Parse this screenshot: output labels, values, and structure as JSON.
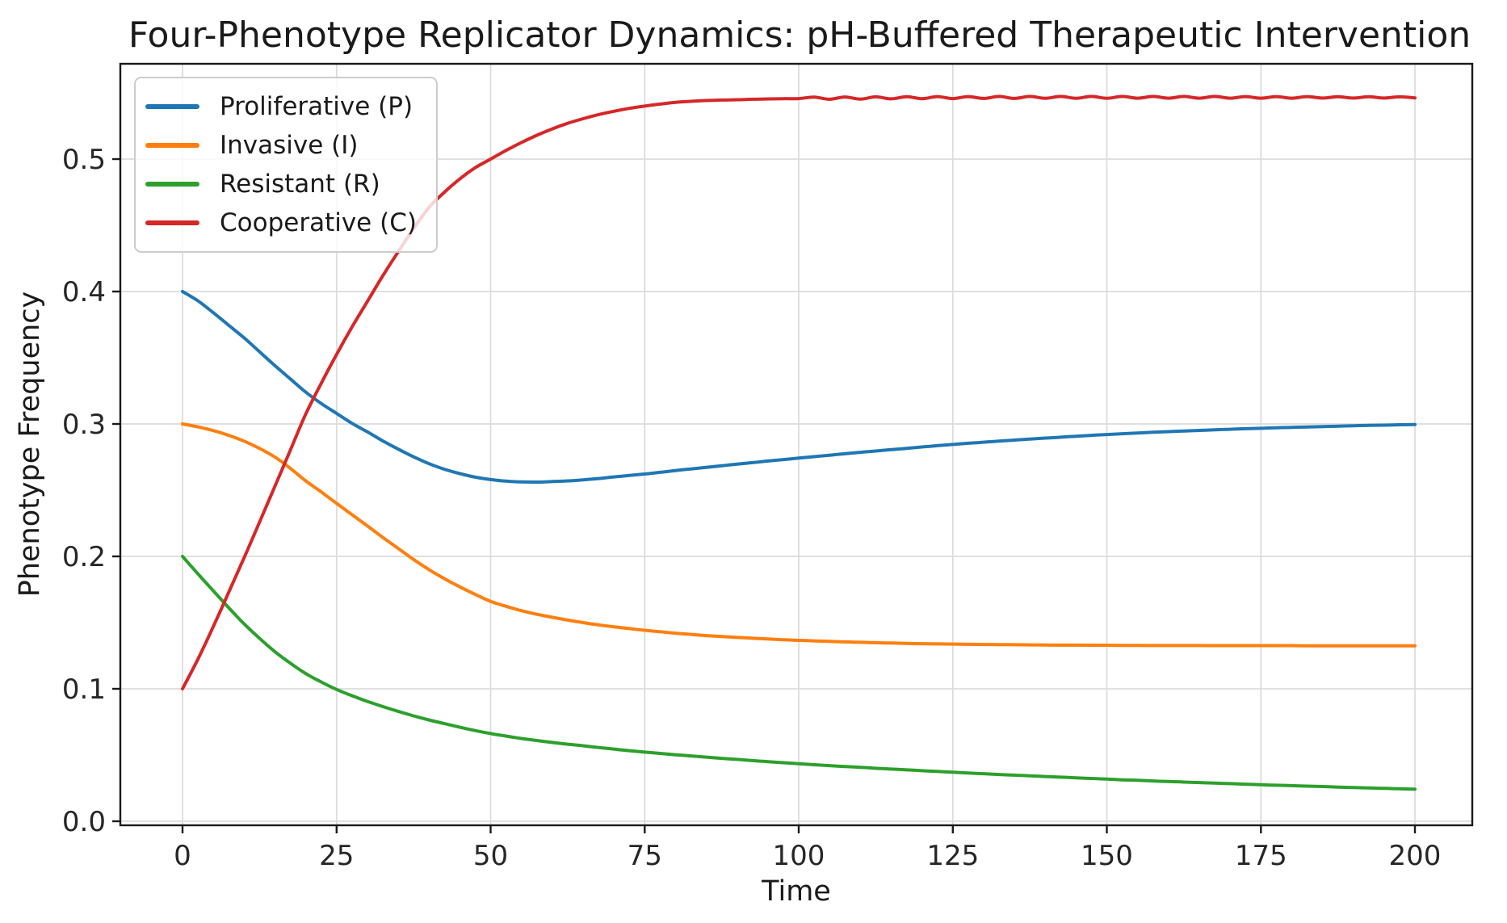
{
  "figure": {
    "background": "#ffffff"
  },
  "chart_data": {
    "type": "line",
    "title": "Four-Phenotype Replicator Dynamics: pH-Buffered Therapeutic Intervention",
    "xlabel": "Time",
    "ylabel": "Phenotype Frequency",
    "xlim": [
      -10,
      210
    ],
    "ylim": [
      -0.003,
      0.573
    ],
    "grid": true,
    "grid_color": "#dcdcdc",
    "axis_color": "#1a1a1a",
    "legend_position": "upper left",
    "xtick_values": [
      0,
      25,
      50,
      75,
      100,
      125,
      150,
      175,
      200
    ],
    "xtick_labels": [
      "0",
      "25",
      "50",
      "75",
      "100",
      "125",
      "150",
      "175",
      "200"
    ],
    "ytick_values": [
      0.0,
      0.1,
      0.2,
      0.3,
      0.4,
      0.5
    ],
    "ytick_labels": [
      "0.0",
      "0.1",
      "0.2",
      "0.3",
      "0.4",
      "0.5"
    ],
    "x": [
      0,
      2.5,
      5,
      7.5,
      10,
      12.5,
      15,
      17.5,
      20,
      22.5,
      25,
      27.5,
      30,
      32.5,
      35,
      37.5,
      40,
      42.5,
      45,
      47.5,
      50,
      52.5,
      55,
      57.5,
      60,
      62.5,
      65,
      67.5,
      70,
      72.5,
      75,
      77.5,
      80,
      82.5,
      85,
      87.5,
      90,
      92.5,
      95,
      97.5,
      100,
      102.5,
      105,
      107.5,
      110,
      112.5,
      115,
      117.5,
      120,
      122.5,
      125,
      127.5,
      130,
      132.5,
      135,
      137.5,
      140,
      142.5,
      145,
      147.5,
      150,
      152.5,
      155,
      157.5,
      160,
      162.5,
      165,
      167.5,
      170,
      172.5,
      175,
      177.5,
      180,
      182.5,
      185,
      187.5,
      190,
      192.5,
      195,
      197.5,
      200
    ],
    "series": [
      {
        "name": "Proliferative (P)",
        "color": "#1f77b4",
        "values": [
          0.4,
          0.393,
          0.384,
          0.3745,
          0.365,
          0.3545,
          0.344,
          0.334,
          0.324,
          0.3155,
          0.308,
          0.3005,
          0.294,
          0.2872,
          0.281,
          0.2752,
          0.27,
          0.2658,
          0.2625,
          0.2598,
          0.258,
          0.2568,
          0.2562,
          0.2561,
          0.2565,
          0.257,
          0.2578,
          0.2588,
          0.26,
          0.2611,
          0.2622,
          0.2635,
          0.2648,
          0.266,
          0.2672,
          0.2684,
          0.2697,
          0.2708,
          0.272,
          0.2731,
          0.2742,
          0.2753,
          0.2764,
          0.2775,
          0.2786,
          0.2796,
          0.2806,
          0.2816,
          0.2826,
          0.2836,
          0.2845,
          0.2854,
          0.2862,
          0.287,
          0.2878,
          0.2886,
          0.2893,
          0.29,
          0.2907,
          0.2914,
          0.292,
          0.2926,
          0.2931,
          0.2937,
          0.2942,
          0.2947,
          0.2951,
          0.2956,
          0.296,
          0.2964,
          0.2967,
          0.2971,
          0.2974,
          0.2977,
          0.298,
          0.2983,
          0.2986,
          0.2989,
          0.2991,
          0.2994,
          0.2996
        ]
      },
      {
        "name": "Invasive (I)",
        "color": "#ff7f0e",
        "values": [
          0.3,
          0.2978,
          0.295,
          0.2914,
          0.287,
          0.2815,
          0.275,
          0.2665,
          0.257,
          0.2487,
          0.24,
          0.2315,
          0.223,
          0.2143,
          0.206,
          0.1977,
          0.19,
          0.1832,
          0.177,
          0.1713,
          0.166,
          0.1623,
          0.159,
          0.1563,
          0.154,
          0.1519,
          0.15,
          0.1483,
          0.1468,
          0.1455,
          0.1442,
          0.1431,
          0.142,
          0.1411,
          0.1402,
          0.1395,
          0.1388,
          0.1382,
          0.1376,
          0.1371,
          0.1366,
          0.1362,
          0.1358,
          0.1354,
          0.1351,
          0.1348,
          0.1346,
          0.1343,
          0.1341,
          0.1339,
          0.1338,
          0.1336,
          0.1335,
          0.1334,
          0.1333,
          0.1332,
          0.1331,
          0.133,
          0.133,
          0.1329,
          0.1329,
          0.1328,
          0.1328,
          0.1327,
          0.1327,
          0.1327,
          0.1327,
          0.1326,
          0.1326,
          0.1326,
          0.1326,
          0.1326,
          0.1326,
          0.1325,
          0.1325,
          0.1325,
          0.1325,
          0.1325,
          0.1325,
          0.1325,
          0.1325
        ]
      },
      {
        "name": "Resistant (R)",
        "color": "#2ca02c",
        "values": [
          0.2,
          0.1868,
          0.174,
          0.1612,
          0.149,
          0.1381,
          0.128,
          0.1193,
          0.1115,
          0.1052,
          0.0995,
          0.0948,
          0.0905,
          0.0866,
          0.083,
          0.0796,
          0.0765,
          0.0737,
          0.071,
          0.0685,
          0.0662,
          0.0643,
          0.0625,
          0.061,
          0.0595,
          0.0582,
          0.057,
          0.0557,
          0.0545,
          0.0533,
          0.0522,
          0.0512,
          0.0502,
          0.0493,
          0.0484,
          0.0475,
          0.0467,
          0.0458,
          0.045,
          0.0442,
          0.0435,
          0.0427,
          0.042,
          0.0413,
          0.0407,
          0.04,
          0.0394,
          0.0388,
          0.0382,
          0.0376,
          0.037,
          0.0364,
          0.0359,
          0.0353,
          0.0348,
          0.0343,
          0.0338,
          0.0333,
          0.0328,
          0.0323,
          0.0318,
          0.0313,
          0.0309,
          0.0304,
          0.03,
          0.0296,
          0.0292,
          0.0288,
          0.0284,
          0.028,
          0.0276,
          0.0272,
          0.0269,
          0.0265,
          0.0262,
          0.0258,
          0.0255,
          0.0251,
          0.0248,
          0.0245,
          0.0242
        ]
      },
      {
        "name": "Cooperative (C)",
        "color": "#d62728",
        "values": [
          0.1,
          0.1224,
          0.147,
          0.1729,
          0.199,
          0.2259,
          0.253,
          0.2802,
          0.3075,
          0.3306,
          0.3525,
          0.3732,
          0.3925,
          0.4119,
          0.43,
          0.4475,
          0.4635,
          0.475,
          0.485,
          0.4935,
          0.5,
          0.5065,
          0.5125,
          0.518,
          0.5228,
          0.527,
          0.5305,
          0.5336,
          0.5361,
          0.5383,
          0.54,
          0.5415,
          0.5428,
          0.5436,
          0.5442,
          0.5446,
          0.5448,
          0.5452,
          0.5454,
          0.5456,
          0.5457,
          0.5468,
          0.5452,
          0.5469,
          0.5453,
          0.547,
          0.5455,
          0.5471,
          0.5456,
          0.5472,
          0.5457,
          0.5472,
          0.5458,
          0.5473,
          0.5458,
          0.5473,
          0.5459,
          0.5473,
          0.5459,
          0.5473,
          0.5459,
          0.5473,
          0.546,
          0.5473,
          0.546,
          0.5473,
          0.546,
          0.5473,
          0.546,
          0.5472,
          0.546,
          0.5472,
          0.546,
          0.5472,
          0.5461,
          0.5471,
          0.5461,
          0.5471,
          0.5461,
          0.547,
          0.5462
        ]
      }
    ]
  }
}
